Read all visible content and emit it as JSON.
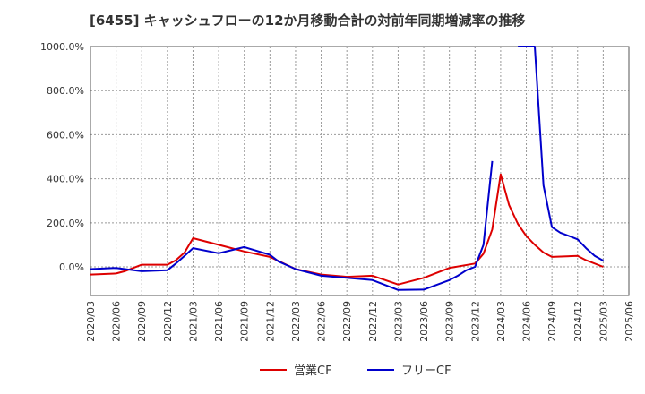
{
  "chart_data": {
    "type": "line",
    "title": "[6455]  キャッシュフローの12か月移動合計の対前年同期増減率の推移",
    "xlabel": "",
    "ylabel": "",
    "ylim": [
      -130,
      1000
    ],
    "yticks": [
      0,
      200,
      400,
      600,
      800,
      1000
    ],
    "ytick_labels": [
      "0.0%",
      "200.0%",
      "400.0%",
      "600.0%",
      "800.0%",
      "1000.0%"
    ],
    "grid": true,
    "legend_position": "bottom-center",
    "categories": [
      "2020/03",
      "2020/06",
      "2020/09",
      "2020/12",
      "2021/03",
      "2021/06",
      "2021/09",
      "2021/12",
      "2022/03",
      "2022/06",
      "2022/09",
      "2022/12",
      "2023/03",
      "2023/06",
      "2023/09",
      "2023/12",
      "2024/03",
      "2024/06",
      "2024/09",
      "2024/12",
      "2025/03",
      "2025/06"
    ],
    "series": [
      {
        "name": "営業CF",
        "color": "#dd0000",
        "points": [
          [
            0,
            -35
          ],
          [
            1,
            -30
          ],
          [
            1.33,
            -20
          ],
          [
            2,
            10
          ],
          [
            3,
            10
          ],
          [
            3.33,
            30
          ],
          [
            3.67,
            65
          ],
          [
            4,
            130
          ],
          [
            5,
            100
          ],
          [
            6,
            70
          ],
          [
            7,
            45
          ],
          [
            8,
            -10
          ],
          [
            9,
            -35
          ],
          [
            10,
            -45
          ],
          [
            11,
            -40
          ],
          [
            12,
            -80
          ],
          [
            13,
            -50
          ],
          [
            14,
            -5
          ],
          [
            15,
            15
          ],
          [
            15.33,
            60
          ],
          [
            15.67,
            170
          ],
          [
            16,
            420
          ],
          [
            16.33,
            280
          ],
          [
            16.67,
            195
          ],
          [
            17,
            140
          ],
          [
            17.33,
            100
          ],
          [
            17.67,
            65
          ],
          [
            18,
            45
          ],
          [
            19,
            50
          ],
          [
            19.33,
            30
          ],
          [
            20,
            0
          ]
        ]
      },
      {
        "name": "フリーCF",
        "color": "#0000cc",
        "points": [
          [
            0,
            -10
          ],
          [
            1,
            -5
          ],
          [
            2,
            -20
          ],
          [
            3,
            -15
          ],
          [
            3.33,
            15
          ],
          [
            3.67,
            50
          ],
          [
            4,
            85
          ],
          [
            5,
            62
          ],
          [
            6,
            90
          ],
          [
            7,
            55
          ],
          [
            7.33,
            25
          ],
          [
            8,
            -10
          ],
          [
            9,
            -40
          ],
          [
            10,
            -50
          ],
          [
            11,
            -60
          ],
          [
            12,
            -105
          ],
          [
            13,
            -103
          ],
          [
            14,
            -60
          ],
          [
            14.33,
            -40
          ],
          [
            14.67,
            -15
          ],
          [
            15,
            0
          ],
          [
            15.33,
            100
          ],
          [
            15.67,
            480
          ],
          [
            null,
            null
          ],
          [
            16.67,
            1000
          ],
          [
            17.33,
            1000
          ],
          [
            17.67,
            370
          ],
          [
            18,
            180
          ],
          [
            18.33,
            155
          ],
          [
            18.67,
            140
          ],
          [
            19,
            125
          ],
          [
            19.33,
            85
          ],
          [
            19.67,
            50
          ],
          [
            20,
            28
          ]
        ]
      }
    ]
  }
}
